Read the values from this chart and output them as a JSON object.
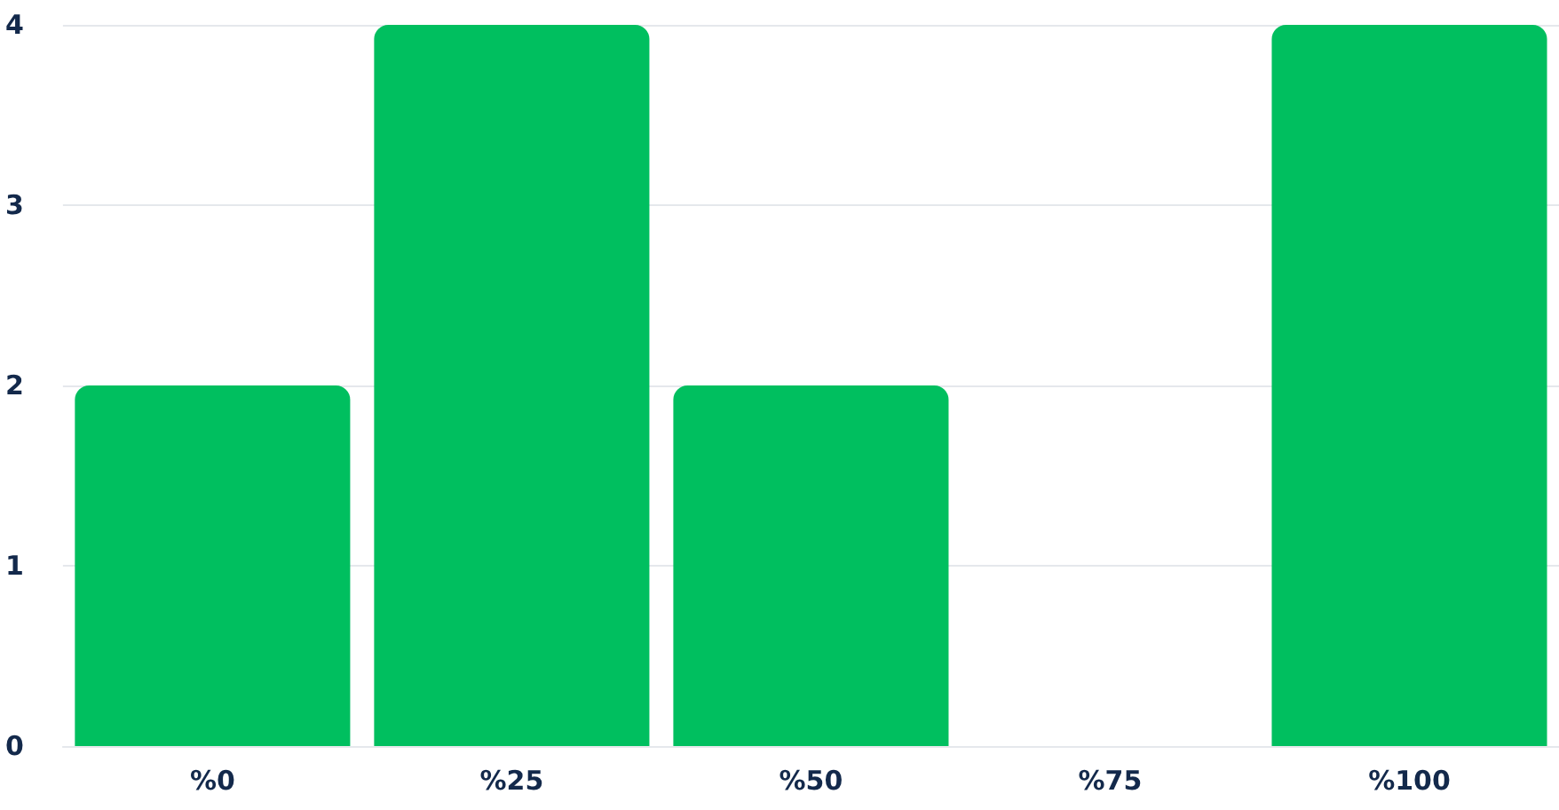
{
  "chart_data": {
    "type": "bar",
    "categories": [
      "%0",
      "%25",
      "%50",
      "%75",
      "%100"
    ],
    "values": [
      2,
      4,
      2,
      0,
      4
    ],
    "color": "#00bf5f",
    "ylim": [
      0,
      4
    ],
    "yticks": [
      0,
      1,
      2,
      3,
      4
    ],
    "grid": "y"
  }
}
